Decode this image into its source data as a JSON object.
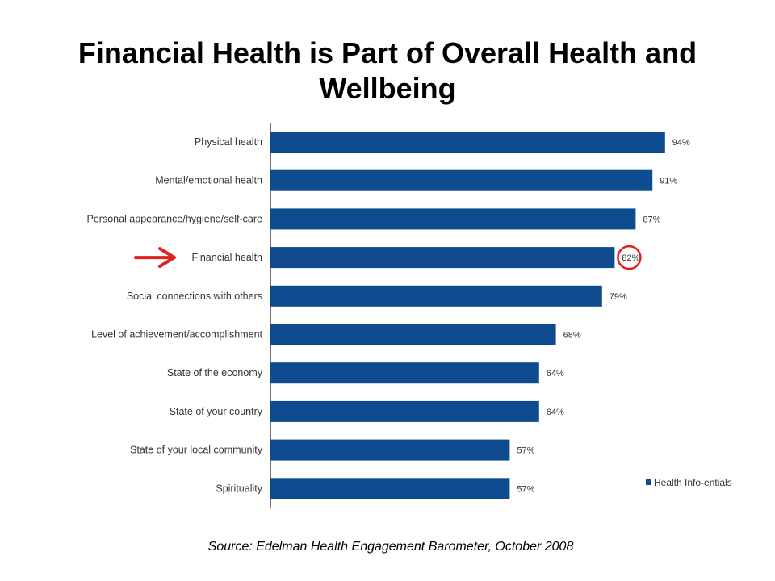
{
  "title": "Financial Health is Part of Overall Health and Wellbeing",
  "source": "Source: Edelman Health Engagement Barometer, October 2008",
  "chart_data": {
    "type": "bar",
    "orientation": "horizontal",
    "categories": [
      "Physical health",
      "Mental/emotional health",
      "Personal appearance/hygiene/self-care",
      "Financial health",
      "Social connections with others",
      "Level of achievement/accomplishment",
      "State of the economy",
      "State of your country",
      "State of your local community",
      "Spirituality"
    ],
    "series": [
      {
        "name": "Health Info-entials",
        "values": [
          94,
          91,
          87,
          82,
          79,
          68,
          64,
          64,
          57,
          57
        ],
        "labels": [
          "94%",
          "91%",
          "87%",
          "82%",
          "79%",
          "68%",
          "64%",
          "64%",
          "57%",
          "57%"
        ]
      }
    ],
    "xlim": [
      0,
      100
    ],
    "grid": false,
    "legend_position": "bottom-right",
    "highlight": {
      "category": "Financial health",
      "marks": [
        "red-arrow",
        "red-circle"
      ]
    },
    "colors": {
      "bar": "#0e4c8f",
      "highlight": "#e0201b",
      "text": "#333333"
    }
  }
}
